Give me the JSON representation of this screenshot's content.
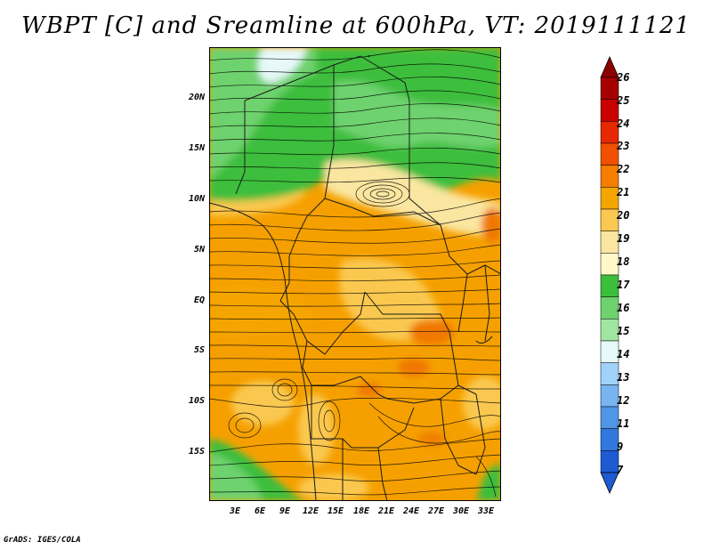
{
  "title": "WBPT [C] and Sreamline at 600hPa, VT: 2019111121",
  "lat_labels": [
    "20N",
    "15N",
    "10N",
    "5N",
    "EQ",
    "5S",
    "10S",
    "15S"
  ],
  "lon_labels": [
    "3E",
    "6E",
    "9E",
    "12E",
    "15E",
    "18E",
    "21E",
    "24E",
    "27E",
    "30E",
    "33E"
  ],
  "colorbar": {
    "labels": [
      "26",
      "25",
      "24",
      "23",
      "22",
      "21",
      "20",
      "19",
      "18",
      "17",
      "16",
      "15",
      "14",
      "13",
      "12",
      "11",
      "9",
      "7"
    ],
    "colors": [
      "#a50000",
      "#c80000",
      "#e62800",
      "#f05000",
      "#f57d00",
      "#f5a500",
      "#fac850",
      "#fae6a0",
      "#fff8c8",
      "#3cbe3c",
      "#6ed26e",
      "#a0e6a0",
      "#e6f8f8",
      "#a0d2fa",
      "#78b4f0",
      "#5096e6",
      "#3278dc",
      "#1e5ad2"
    ],
    "end_top": "#8c0000",
    "end_bottom": "#1e5ad2"
  },
  "credit": "GrADS: IGES/COLA"
}
